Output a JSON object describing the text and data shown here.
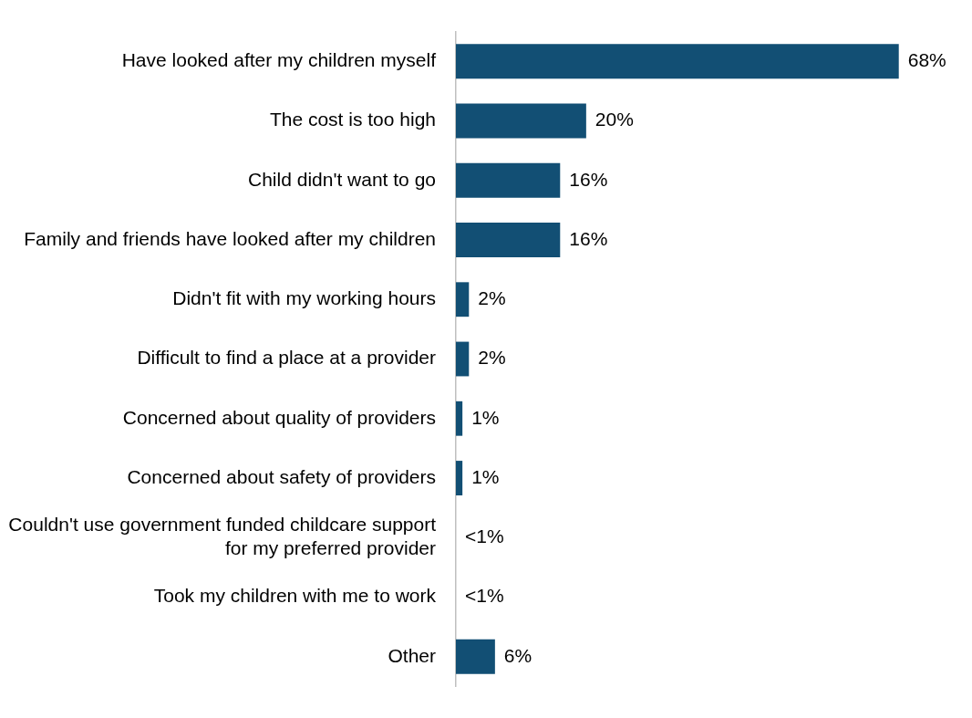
{
  "chart_data": {
    "type": "bar",
    "orientation": "horizontal",
    "categories": [
      "Have looked after my children myself",
      "The cost is too high",
      "Child didn't want to go",
      "Family and friends have looked after my children",
      "Didn't fit with my working hours",
      "Difficult to find a place at a provider",
      "Concerned about quality of providers",
      "Concerned about safety of providers",
      "Couldn't use government funded childcare support for my preferred provider",
      "Took my children with me to work",
      "Other"
    ],
    "values": [
      68,
      20,
      16,
      16,
      2,
      2,
      1,
      1,
      0,
      0,
      6
    ],
    "value_labels": [
      "68%",
      "20%",
      "16%",
      "16%",
      "2%",
      "2%",
      "1%",
      "1%",
      "<1%",
      "<1%",
      "6%"
    ],
    "color": "#124f74",
    "grid": false,
    "legend": false,
    "tick_labels": "y"
  }
}
